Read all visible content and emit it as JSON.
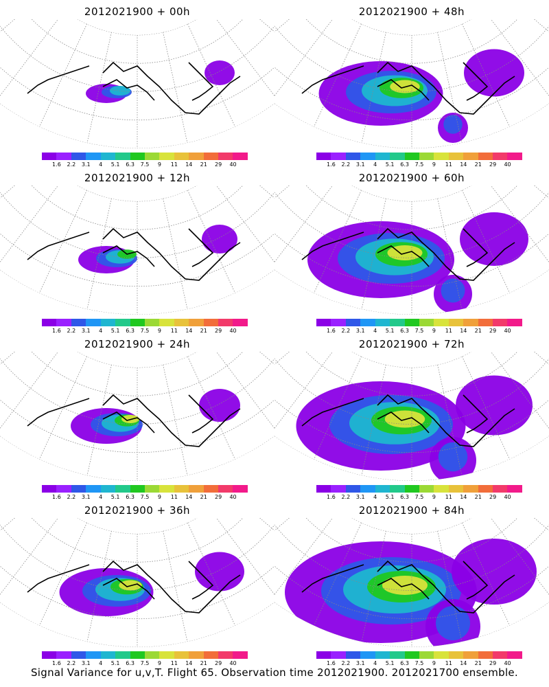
{
  "panels": [
    {
      "title": "2012021900 + 00h",
      "spread": 0.0
    },
    {
      "title": "2012021900 + 48h",
      "spread": 0.55
    },
    {
      "title": "2012021900 + 12h",
      "spread": 0.1
    },
    {
      "title": "2012021900 + 60h",
      "spread": 0.7
    },
    {
      "title": "2012021900 + 24h",
      "spread": 0.2
    },
    {
      "title": "2012021900 + 72h",
      "spread": 0.85
    },
    {
      "title": "2012021900 + 36h",
      "spread": 0.35
    },
    {
      "title": "2012021900 + 84h",
      "spread": 1.0
    }
  ],
  "colorbar": {
    "colors": [
      "#8b00e6",
      "#9a20ff",
      "#2f57e8",
      "#1f96f5",
      "#1fb6d0",
      "#22c98a",
      "#20c820",
      "#9bd935",
      "#d8e33b",
      "#e8c23a",
      "#f0a03a",
      "#f26d3a",
      "#f23a6a",
      "#f21a8a"
    ],
    "labels": [
      "1.6",
      "2.2",
      "3.1",
      "4",
      "5.1",
      "6.3",
      "7.5",
      "9",
      "11",
      "14",
      "21",
      "29",
      "40"
    ]
  },
  "footer": "Signal Variance for u,v,T. Flight 65. Observation time 2012021900. 2012021700 ensemble."
}
